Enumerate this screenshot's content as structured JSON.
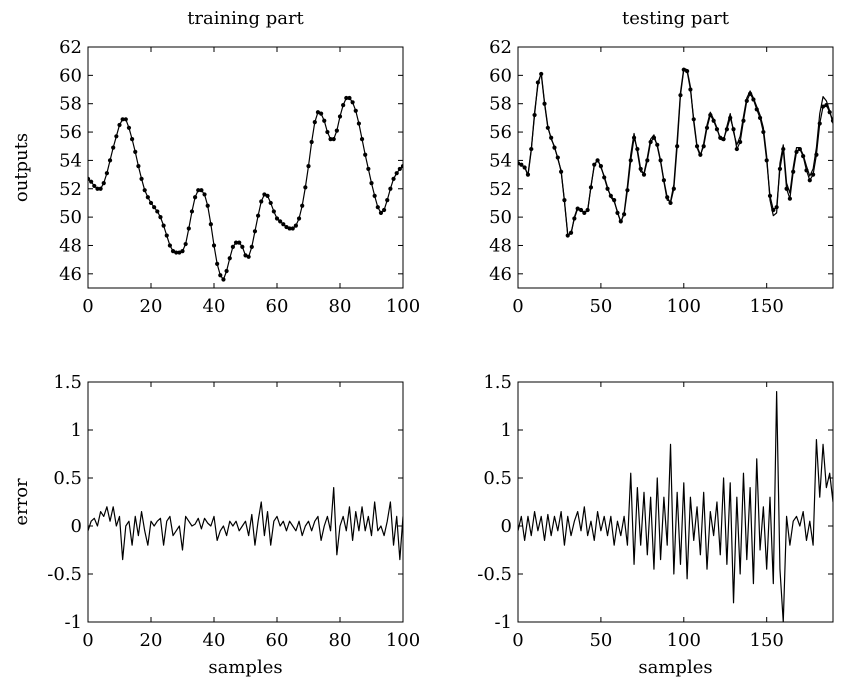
{
  "chart_data": [
    {
      "type": "line",
      "title": "training part",
      "xlabel": "",
      "ylabel": "outputs",
      "xlim": [
        0,
        100
      ],
      "ylim": [
        45,
        62
      ],
      "xticks": [
        0,
        20,
        40,
        60,
        80,
        100
      ],
      "yticks": [
        46,
        48,
        50,
        52,
        54,
        56,
        58,
        60,
        62
      ],
      "series": [
        {
          "style": "line-with-dots",
          "x": [
            0,
            1,
            2,
            3,
            4,
            5,
            6,
            7,
            8,
            9,
            10,
            11,
            12,
            13,
            14,
            15,
            16,
            17,
            18,
            19,
            20,
            21,
            22,
            23,
            24,
            25,
            26,
            27,
            28,
            29,
            30,
            31,
            32,
            33,
            34,
            35,
            36,
            37,
            38,
            39,
            40,
            41,
            42,
            43,
            44,
            45,
            46,
            47,
            48,
            49,
            50,
            51,
            52,
            53,
            54,
            55,
            56,
            57,
            58,
            59,
            60,
            61,
            62,
            63,
            64,
            65,
            66,
            67,
            68,
            69,
            70,
            71,
            72,
            73,
            74,
            75,
            76,
            77,
            78,
            79,
            80,
            81,
            82,
            83,
            84,
            85,
            86,
            87,
            88,
            89,
            90,
            91,
            92,
            93,
            94,
            95,
            96,
            97,
            98,
            99,
            100
          ],
          "values": [
            52.7,
            52.5,
            52.2,
            52.0,
            52.0,
            52.4,
            53.1,
            54.0,
            54.9,
            55.7,
            56.5,
            56.9,
            56.9,
            56.3,
            55.5,
            54.6,
            53.6,
            52.7,
            51.9,
            51.4,
            51.0,
            50.7,
            50.4,
            50.0,
            49.4,
            48.7,
            48.0,
            47.6,
            47.5,
            47.5,
            47.6,
            48.1,
            49.2,
            50.4,
            51.4,
            51.9,
            51.9,
            51.6,
            50.8,
            49.5,
            48.0,
            46.7,
            45.9,
            45.6,
            46.2,
            47.1,
            47.9,
            48.2,
            48.2,
            47.9,
            47.3,
            47.2,
            47.9,
            49.0,
            50.1,
            51.1,
            51.6,
            51.5,
            51.0,
            50.4,
            49.9,
            49.7,
            49.5,
            49.3,
            49.2,
            49.2,
            49.4,
            49.9,
            50.8,
            52.1,
            53.6,
            55.3,
            56.7,
            57.4,
            57.3,
            56.8,
            56.0,
            55.5,
            55.5,
            56.1,
            57.1,
            57.9,
            58.4,
            58.4,
            58.1,
            57.5,
            56.6,
            55.5,
            54.4,
            53.4,
            52.4,
            51.5,
            50.7,
            50.3,
            50.5,
            51.2,
            52.0,
            52.7,
            53.1,
            53.4,
            53.6
          ]
        }
      ]
    },
    {
      "type": "line",
      "title": "testing part",
      "xlabel": "",
      "ylabel": "",
      "xlim": [
        0,
        190
      ],
      "ylim": [
        45,
        62
      ],
      "xticks": [
        0,
        50,
        100,
        150
      ],
      "yticks": [
        46,
        48,
        50,
        52,
        54,
        56,
        58,
        60,
        62
      ],
      "series": [
        {
          "style": "line-with-dots",
          "x": [
            0,
            2,
            4,
            6,
            8,
            10,
            12,
            14,
            16,
            18,
            20,
            22,
            24,
            26,
            28,
            30,
            32,
            34,
            36,
            38,
            40,
            42,
            44,
            46,
            48,
            50,
            52,
            54,
            56,
            58,
            60,
            62,
            64,
            66,
            68,
            70,
            72,
            74,
            76,
            78,
            80,
            82,
            84,
            86,
            88,
            90,
            92,
            94,
            96,
            98,
            100,
            102,
            104,
            106,
            108,
            110,
            112,
            114,
            116,
            118,
            120,
            122,
            124,
            126,
            128,
            130,
            132,
            134,
            136,
            138,
            140,
            142,
            144,
            146,
            148,
            150,
            152,
            154,
            156,
            158,
            160,
            162,
            164,
            166,
            168,
            170,
            172,
            174,
            176,
            178,
            180,
            182,
            184,
            186,
            188,
            190
          ],
          "values": [
            53.8,
            53.7,
            53.5,
            53.0,
            54.8,
            57.2,
            59.5,
            60.1,
            58.0,
            56.3,
            55.6,
            54.9,
            54.2,
            53.2,
            51.2,
            48.7,
            48.9,
            49.9,
            50.6,
            50.5,
            50.3,
            50.5,
            52.1,
            53.7,
            54.0,
            53.6,
            52.8,
            52.0,
            51.5,
            51.2,
            50.3,
            49.7,
            50.2,
            51.9,
            54.0,
            55.6,
            54.8,
            53.4,
            53.0,
            54.0,
            55.3,
            55.6,
            55.1,
            54.0,
            52.6,
            51.4,
            51.0,
            52.0,
            55.0,
            58.6,
            60.4,
            60.3,
            59.0,
            56.9,
            55.0,
            54.4,
            55.0,
            56.3,
            57.2,
            56.8,
            56.2,
            55.6,
            55.5,
            56.2,
            57.0,
            56.2,
            54.8,
            55.3,
            56.8,
            58.2,
            58.7,
            58.3,
            57.6,
            57.0,
            56.0,
            54.0,
            51.5,
            50.5,
            50.7,
            53.4,
            54.8,
            52.0,
            51.3,
            53.2,
            54.6,
            54.8,
            54.3,
            53.3,
            52.6,
            53.0,
            54.4,
            56.6,
            57.8,
            57.9,
            57.4,
            56.8
          ]
        },
        {
          "style": "line",
          "x": [
            0,
            2,
            4,
            6,
            8,
            10,
            12,
            14,
            16,
            18,
            20,
            22,
            24,
            26,
            28,
            30,
            32,
            34,
            36,
            38,
            40,
            42,
            44,
            46,
            48,
            50,
            52,
            54,
            56,
            58,
            60,
            62,
            64,
            66,
            68,
            70,
            72,
            74,
            76,
            78,
            80,
            82,
            84,
            86,
            88,
            90,
            92,
            94,
            96,
            98,
            100,
            102,
            104,
            106,
            108,
            110,
            112,
            114,
            116,
            118,
            120,
            122,
            124,
            126,
            128,
            130,
            132,
            134,
            136,
            138,
            140,
            142,
            144,
            146,
            148,
            150,
            152,
            154,
            156,
            158,
            160,
            162,
            164,
            166,
            168,
            170,
            172,
            174,
            176,
            178,
            180,
            182,
            184,
            186,
            188,
            190
          ],
          "values": [
            53.9,
            53.6,
            53.6,
            52.9,
            54.7,
            57.4,
            59.3,
            60.2,
            58.1,
            56.4,
            55.5,
            55.0,
            54.1,
            53.3,
            51.1,
            48.8,
            48.8,
            50.0,
            50.7,
            50.4,
            50.4,
            50.4,
            52.2,
            53.6,
            54.1,
            53.5,
            52.9,
            52.1,
            51.4,
            51.1,
            50.4,
            49.6,
            50.3,
            52.2,
            54.4,
            55.9,
            54.6,
            53.2,
            53.1,
            54.2,
            55.5,
            55.8,
            55.0,
            53.9,
            52.5,
            51.2,
            51.1,
            52.3,
            55.4,
            58.8,
            60.5,
            60.4,
            59.2,
            56.7,
            54.9,
            54.3,
            55.2,
            56.5,
            57.4,
            56.9,
            56.3,
            55.5,
            55.4,
            56.4,
            57.3,
            56.0,
            55.1,
            55.7,
            57.1,
            58.4,
            58.9,
            58.4,
            57.8,
            57.2,
            56.3,
            54.3,
            51.2,
            50.1,
            50.3,
            53.8,
            55.1,
            52.4,
            51.7,
            53.5,
            54.9,
            54.9,
            54.4,
            53.6,
            52.9,
            53.4,
            54.9,
            57.3,
            58.5,
            58.2,
            57.5,
            56.6
          ]
        }
      ]
    },
    {
      "type": "line",
      "title": "",
      "xlabel": "samples",
      "ylabel": "error",
      "xlim": [
        0,
        100
      ],
      "ylim": [
        -1,
        1.5
      ],
      "xticks": [
        0,
        20,
        40,
        60,
        80,
        100
      ],
      "yticks": [
        -1,
        -0.5,
        0,
        0.5,
        1,
        1.5
      ],
      "ytick_labels": [
        "-1",
        "-0.5",
        "0",
        "0.5",
        "1",
        "1.5"
      ],
      "series": [
        {
          "style": "line",
          "x": [
            0,
            1,
            2,
            3,
            4,
            5,
            6,
            7,
            8,
            9,
            10,
            11,
            12,
            13,
            14,
            15,
            16,
            17,
            18,
            19,
            20,
            21,
            22,
            23,
            24,
            25,
            26,
            27,
            28,
            29,
            30,
            31,
            32,
            33,
            34,
            35,
            36,
            37,
            38,
            39,
            40,
            41,
            42,
            43,
            44,
            45,
            46,
            47,
            48,
            49,
            50,
            51,
            52,
            53,
            54,
            55,
            56,
            57,
            58,
            59,
            60,
            61,
            62,
            63,
            64,
            65,
            66,
            67,
            68,
            69,
            70,
            71,
            72,
            73,
            74,
            75,
            76,
            77,
            78,
            79,
            80,
            81,
            82,
            83,
            84,
            85,
            86,
            87,
            88,
            89,
            90,
            91,
            92,
            93,
            94,
            95,
            96,
            97,
            98,
            99,
            100
          ],
          "values": [
            -0.05,
            0.05,
            0.08,
            0.0,
            0.15,
            0.1,
            0.2,
            0.05,
            0.2,
            0.0,
            0.1,
            -0.35,
            0.0,
            0.05,
            -0.2,
            0.1,
            -0.1,
            0.15,
            -0.05,
            -0.2,
            0.05,
            0.0,
            0.05,
            0.08,
            -0.2,
            0.05,
            0.1,
            -0.1,
            -0.05,
            0.0,
            -0.25,
            0.1,
            0.05,
            0.0,
            0.02,
            0.08,
            -0.03,
            0.08,
            0.03,
            0.0,
            0.1,
            -0.15,
            -0.05,
            0.0,
            -0.1,
            0.05,
            0.0,
            0.05,
            -0.05,
            0.0,
            0.05,
            -0.1,
            0.12,
            -0.2,
            0.05,
            0.25,
            -0.1,
            0.15,
            -0.2,
            0.05,
            0.1,
            0.0,
            0.05,
            -0.05,
            0.05,
            0.0,
            -0.05,
            0.05,
            -0.1,
            0.0,
            0.05,
            -0.05,
            0.05,
            0.1,
            -0.15,
            0.0,
            0.1,
            -0.05,
            0.4,
            -0.3,
            0.0,
            0.1,
            -0.05,
            0.2,
            -0.15,
            0.15,
            -0.05,
            0.2,
            -0.05,
            0.1,
            -0.1,
            0.25,
            -0.05,
            0.0,
            -0.1,
            0.05,
            0.25,
            -0.2,
            0.1,
            -0.35,
            0.1
          ]
        }
      ]
    },
    {
      "type": "line",
      "title": "",
      "xlabel": "samples",
      "ylabel": "",
      "xlim": [
        0,
        190
      ],
      "ylim": [
        -1,
        1.5
      ],
      "xticks": [
        0,
        50,
        100,
        150
      ],
      "yticks": [
        -1,
        -0.5,
        0,
        0.5,
        1,
        1.5
      ],
      "ytick_labels": [
        "-1",
        "-0.5",
        "0",
        "0.5",
        "1",
        "1.5"
      ],
      "series": [
        {
          "style": "line",
          "x": [
            0,
            2,
            4,
            6,
            8,
            10,
            12,
            14,
            16,
            18,
            20,
            22,
            24,
            26,
            28,
            30,
            32,
            34,
            36,
            38,
            40,
            42,
            44,
            46,
            48,
            50,
            52,
            54,
            56,
            58,
            60,
            62,
            64,
            66,
            68,
            70,
            72,
            74,
            76,
            78,
            80,
            82,
            84,
            86,
            88,
            90,
            92,
            94,
            96,
            98,
            100,
            102,
            104,
            106,
            108,
            110,
            112,
            114,
            116,
            118,
            120,
            122,
            124,
            126,
            128,
            130,
            132,
            134,
            136,
            138,
            140,
            142,
            144,
            146,
            148,
            150,
            152,
            154,
            156,
            158,
            160,
            162,
            164,
            166,
            168,
            170,
            172,
            174,
            176,
            178,
            180,
            182,
            184,
            186,
            188,
            190
          ],
          "values": [
            -0.05,
            0.1,
            -0.15,
            0.1,
            -0.1,
            0.15,
            -0.05,
            0.1,
            -0.15,
            0.12,
            -0.1,
            0.1,
            -0.05,
            0.15,
            -0.2,
            0.1,
            -0.1,
            0.05,
            0.15,
            -0.05,
            0.2,
            -0.1,
            0.05,
            -0.15,
            0.15,
            -0.05,
            0.1,
            -0.1,
            0.1,
            -0.2,
            0.05,
            -0.1,
            0.1,
            -0.2,
            0.55,
            -0.4,
            0.4,
            -0.2,
            0.35,
            -0.3,
            0.3,
            -0.45,
            0.5,
            -0.35,
            0.3,
            -0.2,
            0.85,
            -0.5,
            0.35,
            -0.4,
            0.45,
            -0.55,
            0.3,
            -0.15,
            0.2,
            -0.3,
            0.35,
            -0.45,
            0.15,
            -0.1,
            0.25,
            -0.3,
            0.5,
            -0.4,
            0.45,
            -0.8,
            0.3,
            -0.5,
            0.55,
            -0.35,
            0.4,
            -0.6,
            0.7,
            -0.25,
            0.2,
            -0.45,
            0.3,
            -0.6,
            1.4,
            -0.45,
            -1.0,
            0.1,
            -0.2,
            0.05,
            0.1,
            0.0,
            0.15,
            -0.15,
            0.05,
            -0.2,
            0.9,
            0.3,
            0.85,
            0.4,
            0.55,
            0.25
          ]
        }
      ]
    }
  ]
}
